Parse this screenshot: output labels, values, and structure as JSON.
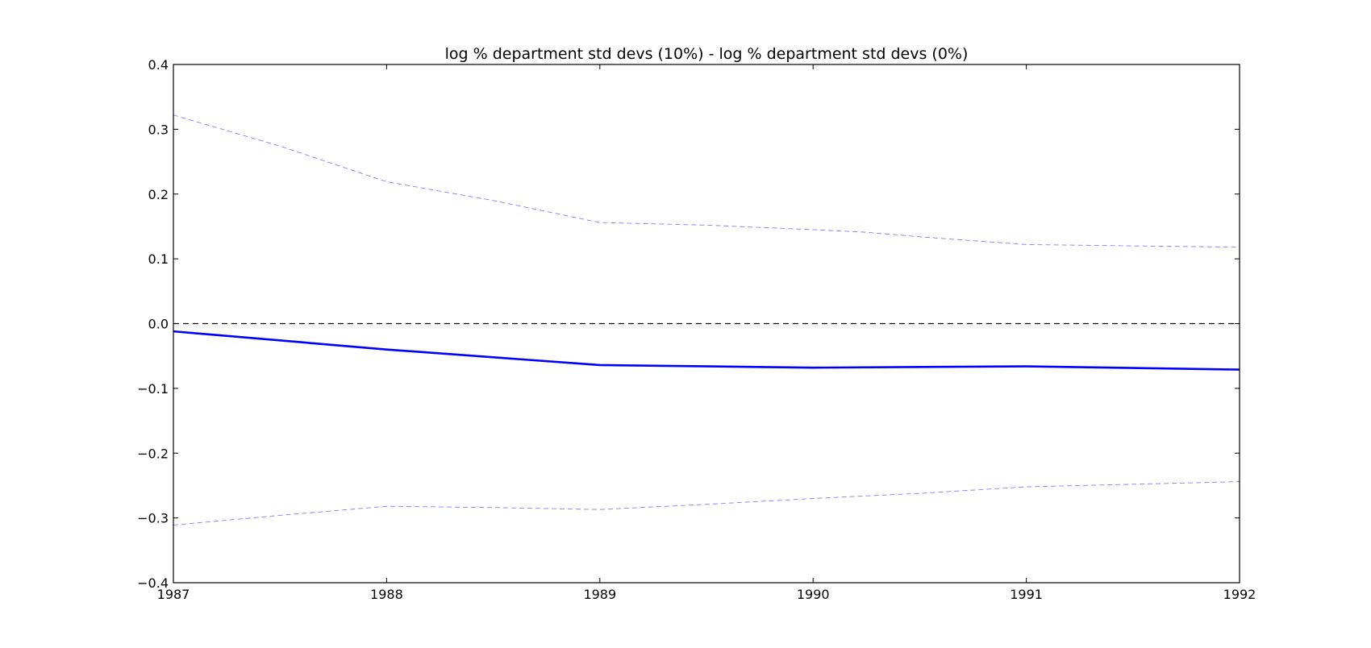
{
  "chart_data": {
    "type": "line",
    "title": "log % department std devs (10%) - log % department std devs (0%)",
    "xlabel": "",
    "ylabel": "",
    "xlim": [
      1987,
      1992
    ],
    "ylim": [
      -0.4,
      0.4
    ],
    "x_ticks": [
      "1987",
      "1988",
      "1989",
      "1990",
      "1991",
      "1992"
    ],
    "y_ticks": [
      "0.4",
      "0.3",
      "0.2",
      "0.1",
      "0.0",
      "−0.1",
      "−0.2",
      "−0.3",
      "−0.4"
    ],
    "y_tick_values": [
      0.4,
      0.3,
      0.2,
      0.1,
      0.0,
      -0.1,
      -0.2,
      -0.3,
      -0.4
    ],
    "x": [
      1987,
      1988,
      1989,
      1990,
      1991,
      1992
    ],
    "series": [
      {
        "role": "estimate",
        "values": [
          -0.012,
          -0.04,
          -0.064,
          -0.068,
          -0.066,
          -0.071
        ],
        "color": "#0000ff",
        "style": "solid"
      },
      {
        "role": "upper-band",
        "x": [
          1987,
          1987.5,
          1988,
          1988.5,
          1989,
          1989.5,
          1990,
          1990.25,
          1990.5,
          1991,
          1991.5,
          1992
        ],
        "values": [
          0.322,
          0.274,
          0.219,
          0.19,
          0.156,
          0.152,
          0.145,
          0.141,
          0.134,
          0.122,
          0.12,
          0.118
        ],
        "color": "#8080ff",
        "style": "dashed"
      },
      {
        "role": "lower-band",
        "x": [
          1987,
          1987.5,
          1988,
          1988.5,
          1989,
          1989.5,
          1990,
          1990.5,
          1991,
          1991.5,
          1992
        ],
        "values": [
          -0.311,
          -0.296,
          -0.282,
          -0.284,
          -0.287,
          -0.279,
          -0.27,
          -0.262,
          -0.252,
          -0.248,
          -0.244
        ],
        "color": "#8080ff",
        "style": "dashed"
      },
      {
        "role": "zero-reference",
        "x": [
          1987,
          1992
        ],
        "values": [
          0.0,
          0.0
        ],
        "color": "#000000",
        "style": "dashed"
      }
    ],
    "grid": false,
    "legend": "none"
  }
}
